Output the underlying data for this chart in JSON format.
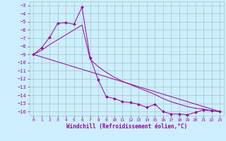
{
  "background_color": "#cceeff",
  "grid_color": "#aacccc",
  "line_color": "#990099",
  "xlabel": "Windchill (Refroidissement éolien,°C)",
  "ylim": [
    -16.5,
    -2.5
  ],
  "xlim": [
    -0.5,
    23.5
  ],
  "yticks": [
    -3,
    -4,
    -5,
    -6,
    -7,
    -8,
    -9,
    -10,
    -11,
    -12,
    -13,
    -14,
    -15,
    -16
  ],
  "xticks": [
    0,
    1,
    2,
    3,
    4,
    5,
    6,
    7,
    8,
    9,
    10,
    11,
    12,
    13,
    14,
    15,
    16,
    17,
    18,
    19,
    20,
    21,
    22,
    23
  ],
  "series1_x": [
    0,
    1,
    2,
    3,
    4,
    5,
    6,
    7,
    8,
    9,
    10,
    11,
    12,
    13,
    14,
    15,
    16,
    17,
    18,
    19,
    20,
    21,
    22,
    23
  ],
  "series1_y": [
    -9.0,
    -8.2,
    -6.9,
    -5.2,
    -5.1,
    -5.3,
    -3.2,
    -9.4,
    -12.1,
    -14.2,
    -14.4,
    -14.8,
    -14.9,
    -15.1,
    -15.5,
    -15.1,
    -16.0,
    -16.3,
    -16.3,
    -16.4,
    -16.1,
    -15.8,
    -15.9,
    -16.0
  ],
  "series2_x": [
    0,
    23
  ],
  "series2_y": [
    -9.0,
    -16.0
  ],
  "series3_x": [
    0,
    1,
    2,
    3,
    4,
    5,
    6,
    7,
    8,
    9,
    10,
    11,
    12,
    13,
    14,
    15,
    16,
    17,
    18,
    19,
    20,
    21,
    22,
    23
  ],
  "series3_y": [
    -9.0,
    -8.5,
    -7.8,
    -7.2,
    -6.6,
    -6.0,
    -5.4,
    -9.6,
    -10.5,
    -11.2,
    -11.8,
    -12.3,
    -12.7,
    -13.1,
    -13.5,
    -13.9,
    -14.4,
    -14.8,
    -15.1,
    -15.4,
    -15.6,
    -15.7,
    -15.9,
    -16.0
  ]
}
